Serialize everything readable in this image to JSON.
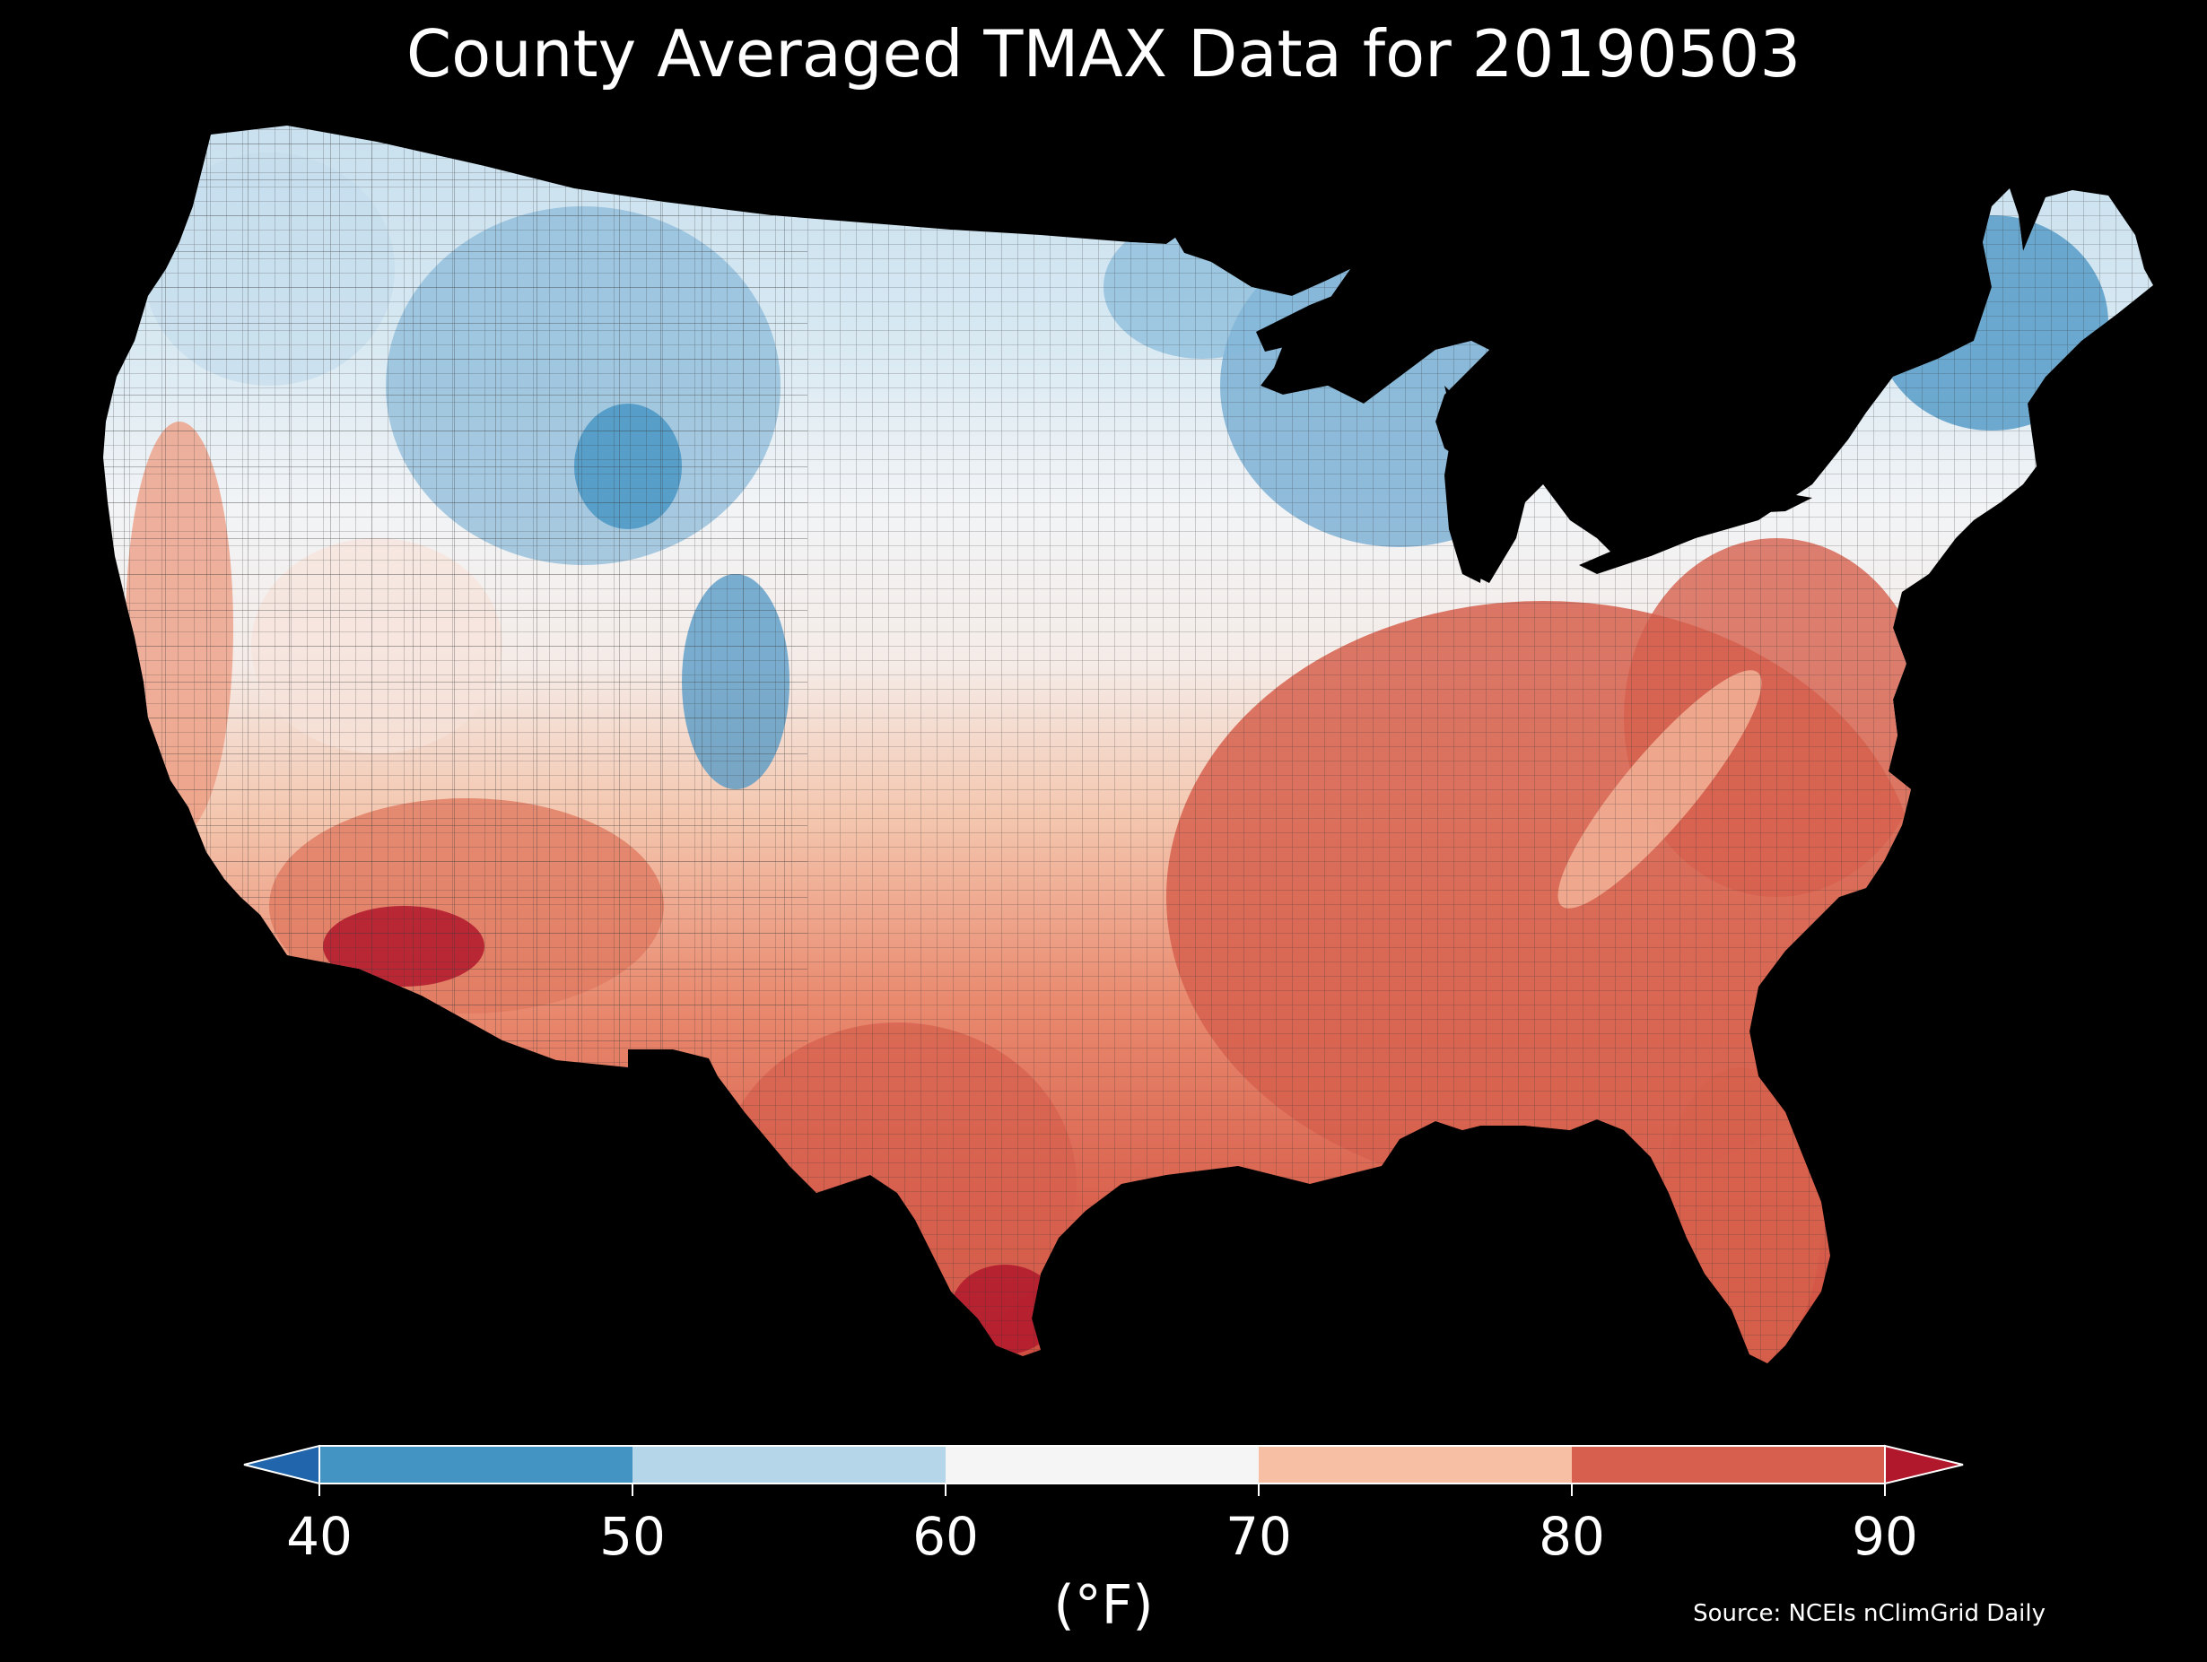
{
  "title": "County Averaged TMAX Data for 20190503",
  "colorbar": {
    "ticks": [
      "40",
      "50",
      "60",
      "70",
      "80",
      "90"
    ],
    "unit": "(°F)",
    "under_color": "#2166ac",
    "over_color": "#b2182b",
    "bins": [
      {
        "min": 40,
        "max": 50,
        "color": "#4393c3"
      },
      {
        "min": 50,
        "max": 60,
        "color": "#b5d6e8"
      },
      {
        "min": 60,
        "max": 70,
        "color": "#f5f5f5"
      },
      {
        "min": 70,
        "max": 80,
        "color": "#f7bfa3"
      },
      {
        "min": 80,
        "max": 90,
        "color": "#d6604d"
      }
    ]
  },
  "source": "Source: NCEIs nClimGrid Daily",
  "colors": {
    "background": "#000000",
    "text": "#ffffff",
    "county_border": "#333333"
  }
}
